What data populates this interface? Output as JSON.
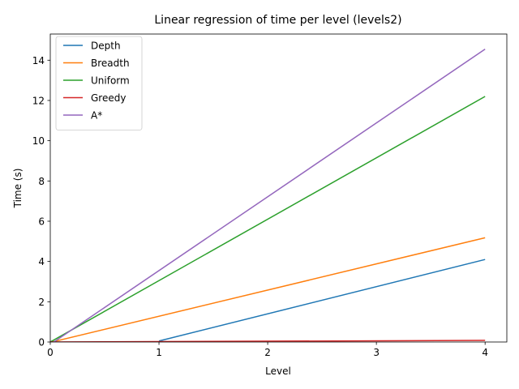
{
  "chart_data": {
    "type": "line",
    "title": "Linear regression of time per level (levels2)",
    "xlabel": "Level",
    "ylabel": "Time (s)",
    "xlim": [
      0,
      4.2
    ],
    "ylim": [
      0,
      15.3
    ],
    "xticks": [
      0,
      1,
      2,
      3,
      4
    ],
    "yticks": [
      0,
      2,
      4,
      6,
      8,
      10,
      12,
      14
    ],
    "grid": false,
    "legend_position": "top-left",
    "series": [
      {
        "name": "Depth",
        "color": "#1f77b4",
        "x": [
          1,
          4
        ],
        "y": [
          0.05,
          4.1
        ]
      },
      {
        "name": "Breadth",
        "color": "#ff7f0e",
        "x": [
          0,
          4
        ],
        "y": [
          -0.02,
          5.18
        ]
      },
      {
        "name": "Uniform",
        "color": "#2ca02c",
        "x": [
          0,
          4
        ],
        "y": [
          0.0,
          12.2
        ]
      },
      {
        "name": "Greedy",
        "color": "#d62728",
        "x": [
          0,
          4
        ],
        "y": [
          0.0,
          0.08
        ]
      },
      {
        "name": "A*",
        "color": "#9467bd",
        "x": [
          0,
          4
        ],
        "y": [
          -0.12,
          14.55
        ]
      }
    ]
  }
}
